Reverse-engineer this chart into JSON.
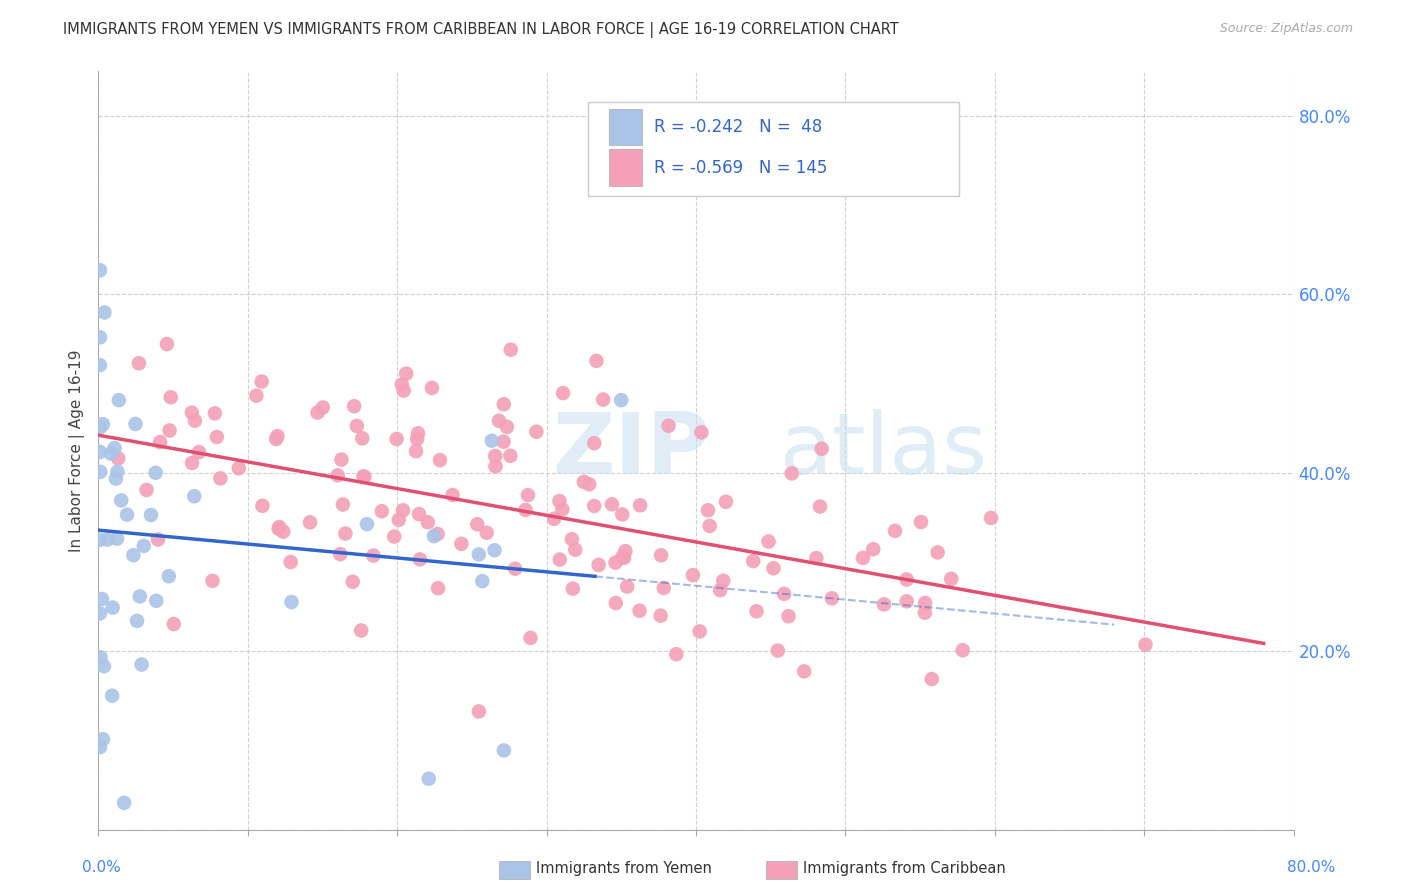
{
  "title": "IMMIGRANTS FROM YEMEN VS IMMIGRANTS FROM CARIBBEAN IN LABOR FORCE | AGE 16-19 CORRELATION CHART",
  "source": "Source: ZipAtlas.com",
  "ylabel": "In Labor Force | Age 16-19",
  "series": [
    {
      "label": "Immigrants from Yemen",
      "R": -0.242,
      "N": 48,
      "color": "#aac4e8",
      "line_color": "#3366cc"
    },
    {
      "label": "Immigrants from Caribbean",
      "R": -0.569,
      "N": 145,
      "color": "#f4a0b8",
      "line_color": "#e05070"
    }
  ],
  "xlim": [
    0.0,
    0.8
  ],
  "ylim": [
    0.0,
    0.85
  ],
  "yticks": [
    0.0,
    0.2,
    0.4,
    0.6,
    0.8
  ],
  "ytick_labels": [
    "",
    "20.0%",
    "40.0%",
    "60.0%",
    "80.0%"
  ],
  "background_color": "#ffffff",
  "grid_color": "#cccccc",
  "watermark_zip": "ZIP",
  "watermark_atlas": "atlas",
  "legend_R_color": "#3366cc",
  "legend_N_color": "#3366cc"
}
